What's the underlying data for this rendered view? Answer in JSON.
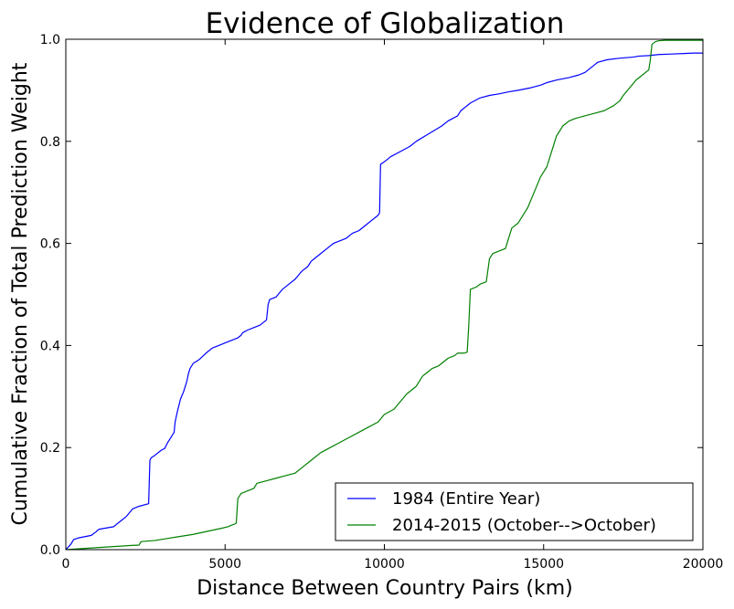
{
  "chart_data": {
    "type": "line",
    "title": "Evidence of Globalization",
    "xlabel": "Distance Between Country Pairs (km)",
    "ylabel": "Cumulative Fraction of Total Prediction Weight",
    "xlim": [
      0,
      20000
    ],
    "ylim": [
      0,
      1.0
    ],
    "x_ticks": [
      0,
      5000,
      10000,
      15000,
      20000
    ],
    "x_tick_labels": [
      "0",
      "5000",
      "10000",
      "15000",
      "20000"
    ],
    "y_ticks": [
      0.0,
      0.2,
      0.4,
      0.6,
      0.8,
      1.0
    ],
    "y_tick_labels": [
      "0.0",
      "0.2",
      "0.4",
      "0.6",
      "0.8",
      "1.0"
    ],
    "grid": false,
    "legend_position": "bottom-right",
    "series": [
      {
        "name": "1984 (Entire Year)",
        "color": "#0000ff",
        "x": [
          0,
          150,
          200,
          250,
          400,
          800,
          950,
          1000,
          1050,
          1500,
          1700,
          1900,
          2100,
          2300,
          2600,
          2640,
          2680,
          2800,
          3000,
          3100,
          3200,
          3300,
          3400,
          3430,
          3500,
          3600,
          3700,
          3800,
          3850,
          3900,
          4000,
          4200,
          4400,
          4600,
          4800,
          5000,
          5200,
          5400,
          5500,
          5550,
          5700,
          5900,
          6100,
          6300,
          6350,
          6400,
          6600,
          6800,
          7000,
          7200,
          7400,
          7600,
          7700,
          7800,
          8000,
          8200,
          8400,
          8600,
          8800,
          9000,
          9200,
          9400,
          9600,
          9700,
          9800,
          9850,
          9880,
          10000,
          10200,
          10500,
          10800,
          11000,
          11400,
          11800,
          12000,
          12300,
          12400,
          12700,
          13000,
          13300,
          13600,
          13900,
          14200,
          14600,
          14900,
          15100,
          15400,
          15800,
          16100,
          16300,
          16600,
          16700,
          17000,
          17400,
          17800,
          18000,
          18300,
          18600,
          19000,
          19400,
          19700,
          20000
        ],
        "y": [
          0.0,
          0.01,
          0.015,
          0.02,
          0.023,
          0.028,
          0.035,
          0.038,
          0.04,
          0.045,
          0.055,
          0.065,
          0.08,
          0.085,
          0.09,
          0.175,
          0.18,
          0.185,
          0.195,
          0.198,
          0.21,
          0.22,
          0.23,
          0.25,
          0.27,
          0.295,
          0.31,
          0.33,
          0.345,
          0.355,
          0.365,
          0.373,
          0.385,
          0.395,
          0.4,
          0.405,
          0.41,
          0.415,
          0.42,
          0.425,
          0.43,
          0.435,
          0.44,
          0.45,
          0.48,
          0.49,
          0.495,
          0.51,
          0.52,
          0.53,
          0.545,
          0.555,
          0.565,
          0.57,
          0.58,
          0.59,
          0.6,
          0.605,
          0.61,
          0.62,
          0.625,
          0.635,
          0.645,
          0.65,
          0.655,
          0.66,
          0.755,
          0.76,
          0.77,
          0.78,
          0.79,
          0.8,
          0.815,
          0.83,
          0.84,
          0.85,
          0.86,
          0.875,
          0.885,
          0.89,
          0.893,
          0.897,
          0.9,
          0.905,
          0.91,
          0.915,
          0.92,
          0.925,
          0.93,
          0.935,
          0.95,
          0.955,
          0.96,
          0.963,
          0.965,
          0.967,
          0.968,
          0.97,
          0.971,
          0.972,
          0.973,
          0.973
        ]
      },
      {
        "name": "2014-2015 (October-->October)",
        "color": "#008000",
        "x": [
          0,
          500,
          1000,
          1500,
          2000,
          2300,
          2350,
          2400,
          2800,
          3000,
          3200,
          3500,
          3800,
          4000,
          4300,
          4600,
          4900,
          5100,
          5200,
          5300,
          5350,
          5400,
          5500,
          5700,
          5900,
          6000,
          6300,
          6600,
          6900,
          7200,
          7400,
          7600,
          7800,
          8000,
          8300,
          8600,
          8900,
          9200,
          9500,
          9800,
          10000,
          10300,
          10500,
          10700,
          11000,
          11200,
          11300,
          11400,
          11500,
          11700,
          12000,
          12200,
          12300,
          12500,
          12600,
          12650,
          12700,
          12900,
          13000,
          13200,
          13300,
          13350,
          13400,
          13600,
          13800,
          14000,
          14200,
          14300,
          14400,
          14500,
          14700,
          14900,
          15000,
          15100,
          15200,
          15300,
          15400,
          15500,
          15600,
          15700,
          15800,
          16000,
          16300,
          16600,
          16900,
          17200,
          17400,
          17500,
          17700,
          17900,
          18100,
          18300,
          18350,
          18400,
          18500,
          18600,
          18800,
          19000,
          19300,
          19600,
          20000
        ],
        "y": [
          0.0,
          0.002,
          0.004,
          0.006,
          0.008,
          0.009,
          0.015,
          0.016,
          0.018,
          0.02,
          0.022,
          0.025,
          0.028,
          0.03,
          0.034,
          0.038,
          0.042,
          0.045,
          0.048,
          0.05,
          0.052,
          0.1,
          0.11,
          0.115,
          0.12,
          0.13,
          0.135,
          0.14,
          0.145,
          0.15,
          0.16,
          0.17,
          0.18,
          0.19,
          0.2,
          0.21,
          0.22,
          0.23,
          0.24,
          0.25,
          0.265,
          0.275,
          0.29,
          0.305,
          0.32,
          0.34,
          0.345,
          0.35,
          0.355,
          0.36,
          0.375,
          0.38,
          0.385,
          0.385,
          0.387,
          0.44,
          0.51,
          0.515,
          0.52,
          0.525,
          0.57,
          0.575,
          0.58,
          0.585,
          0.59,
          0.63,
          0.64,
          0.65,
          0.66,
          0.67,
          0.7,
          0.73,
          0.74,
          0.75,
          0.77,
          0.79,
          0.81,
          0.82,
          0.83,
          0.835,
          0.84,
          0.845,
          0.85,
          0.855,
          0.86,
          0.87,
          0.88,
          0.89,
          0.905,
          0.92,
          0.93,
          0.94,
          0.96,
          0.99,
          0.995,
          0.997,
          0.998,
          0.998,
          0.998,
          0.998,
          0.998
        ]
      }
    ]
  }
}
